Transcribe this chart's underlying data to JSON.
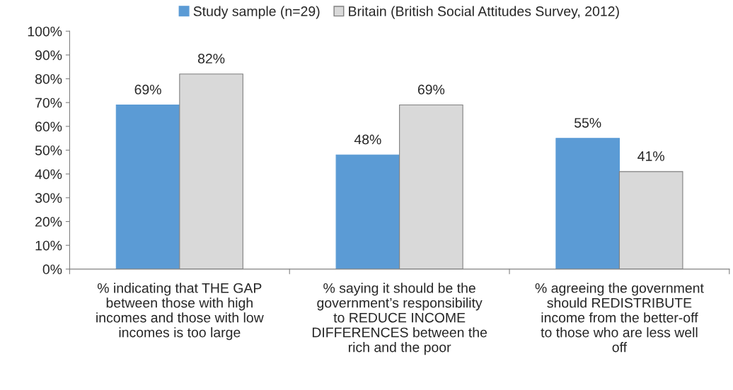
{
  "chart_data": {
    "type": "bar",
    "categories": [
      "% indicating that THE GAP\nbetween those with high\nincomes and those with low\nincomes is too large",
      "% saying it should be the\ngovernment’s responsibility\nto REDUCE INCOME\nDIFFERENCES between the\nrich and the poor",
      "% agreeing the government\nshould REDISTRIBUTE\nincome from the better-off\nto those who are less well\noff"
    ],
    "series": [
      {
        "name": "Study sample (n=29)",
        "color": "#5b9bd5",
        "values": [
          69,
          48,
          55
        ],
        "value_labels": [
          "69%",
          "48%",
          "55%"
        ]
      },
      {
        "name": "Britain (British Social Attitudes Survey, 2012)",
        "color": "#d9d9d9",
        "values": [
          82,
          69,
          41
        ],
        "value_labels": [
          "82%",
          "69%",
          "41%"
        ]
      }
    ],
    "ylim": [
      0,
      100
    ],
    "yticks": [
      {
        "value": 0,
        "label": "0%"
      },
      {
        "value": 10,
        "label": "10%"
      },
      {
        "value": 20,
        "label": "20%"
      },
      {
        "value": 30,
        "label": "30%"
      },
      {
        "value": 40,
        "label": "40%"
      },
      {
        "value": 50,
        "label": "50%"
      },
      {
        "value": 60,
        "label": "60%"
      },
      {
        "value": 70,
        "label": "70%"
      },
      {
        "value": 80,
        "label": "80%"
      },
      {
        "value": 90,
        "label": "90%"
      },
      {
        "value": 100,
        "label": "100%"
      }
    ],
    "grid": false,
    "legend": "top"
  }
}
